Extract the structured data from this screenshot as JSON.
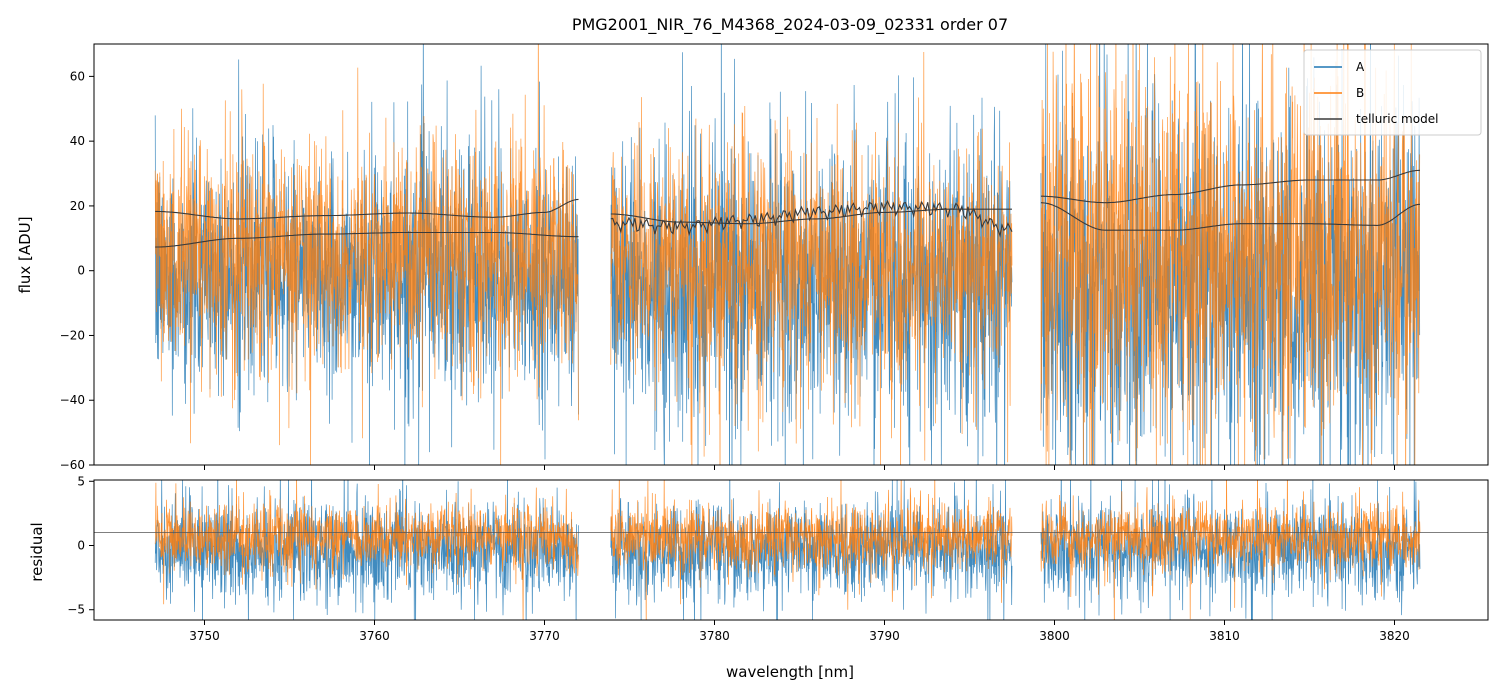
{
  "chart_data": [
    {
      "type": "line",
      "panel": "flux",
      "title": "PMG2001_NIR_76_M4368_2024-03-09_02331  order 07",
      "xlabel": "",
      "ylabel": "flux [ADU]",
      "xlim": [
        3743.5,
        3825.5
      ],
      "ylim": [
        -60,
        70
      ],
      "yticks": [
        -60,
        -40,
        -20,
        0,
        20,
        40,
        60
      ],
      "ytick_labels": [
        "−60",
        "−40",
        "−20",
        "0",
        "20",
        "40",
        "60"
      ],
      "xticks": [
        3750,
        3760,
        3770,
        3780,
        3790,
        3800,
        3810,
        3820
      ],
      "segments": [
        [
          3747.1,
          3772.0
        ],
        [
          3773.9,
          3797.5
        ],
        [
          3799.2,
          3821.5
        ]
      ],
      "legend": {
        "position": "top-right",
        "entries": [
          "A",
          "B",
          "telluric model"
        ]
      },
      "series": [
        {
          "name": "A",
          "color": "#1f77b4",
          "noise_sigma": [
            18,
            22,
            28
          ],
          "baseline": [
            -2,
            -3,
            -6
          ]
        },
        {
          "name": "B",
          "color": "#ff7f0e",
          "noise_sigma": [
            17,
            18,
            28
          ],
          "baseline": [
            5,
            2,
            6
          ]
        },
        {
          "name": "telluric model",
          "color": "#3a3a3a",
          "curves": [
            {
              "x": [
                3747.1,
                3752,
                3757,
                3762,
                3767,
                3770,
                3772.0
              ],
              "y": [
                18.3,
                16.0,
                17.0,
                17.8,
                16.5,
                18.0,
                22.0
              ]
            },
            {
              "x": [
                3747.1,
                3752,
                3757,
                3762,
                3767,
                3772.0
              ],
              "y": [
                7.3,
                10.0,
                11.3,
                11.8,
                11.8,
                10.5
              ]
            },
            {
              "x": [
                3773.9,
                3778,
                3782,
                3786,
                3790,
                3794,
                3797.5
              ],
              "y": [
                17.5,
                15.0,
                14.5,
                16.0,
                18.0,
                19.0,
                19.0
              ]
            },
            {
              "x": [
                3773.9,
                3778,
                3782,
                3786,
                3790,
                3794,
                3797.5
              ],
              "y": [
                16.5,
                15.5,
                17.5,
                20.0,
                21.5,
                21.0,
                14.5
              ]
            },
            {
              "x": [
                3799.2,
                3803,
                3807,
                3811,
                3815,
                3819,
                3821.5
              ],
              "y": [
                23.0,
                21.0,
                23.5,
                26.5,
                28.0,
                28.0,
                31.0
              ]
            },
            {
              "x": [
                3799.2,
                3803,
                3807,
                3811,
                3815,
                3819,
                3821.5
              ],
              "y": [
                21.0,
                12.5,
                12.5,
                14.5,
                14.5,
                14.0,
                20.5
              ]
            }
          ]
        }
      ]
    },
    {
      "type": "line",
      "panel": "residual",
      "xlabel": "wavelength [nm]",
      "ylabel": "residual",
      "xlim": [
        3743.5,
        3825.5
      ],
      "ylim": [
        -5.8,
        5.1
      ],
      "yticks": [
        -5,
        0,
        5
      ],
      "ytick_labels": [
        "−5",
        "0",
        "5"
      ],
      "xticks": [
        3750,
        3760,
        3770,
        3780,
        3790,
        3800,
        3810,
        3820
      ],
      "xtick_labels": [
        "3750",
        "3760",
        "3770",
        "3780",
        "3790",
        "3800",
        "3810",
        "3820"
      ],
      "reference_line": 1.0,
      "series": [
        {
          "name": "A",
          "color": "#1f77b4",
          "noise_sigma": 1.9,
          "baseline": -0.3
        },
        {
          "name": "B",
          "color": "#ff7f0e",
          "noise_sigma": 1.3,
          "baseline": 0.6
        }
      ]
    }
  ]
}
